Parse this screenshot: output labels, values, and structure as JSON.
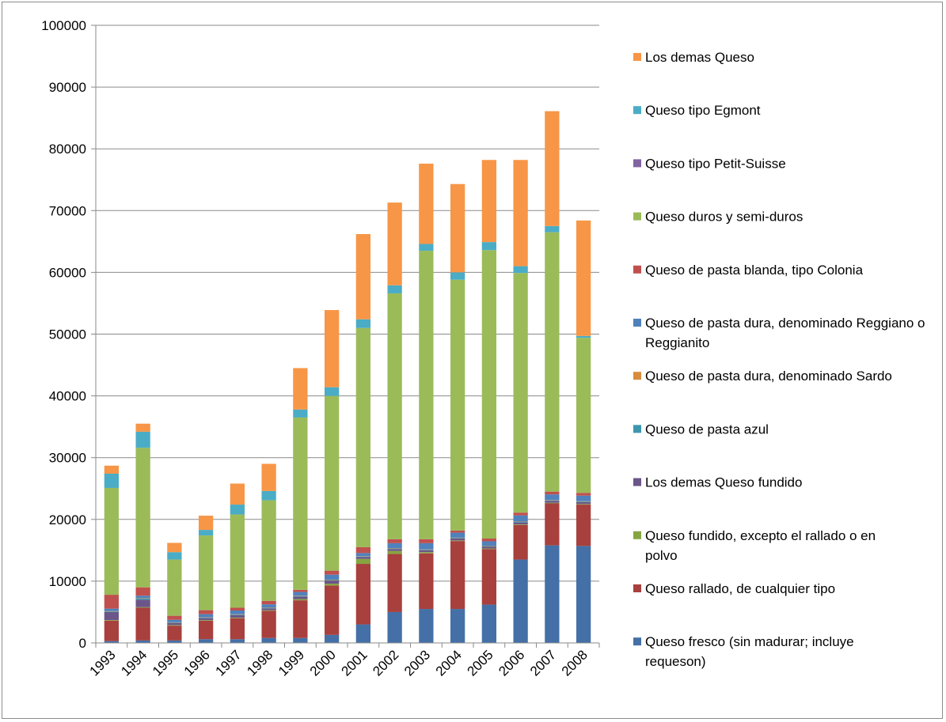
{
  "chart_data": {
    "type": "bar",
    "stacked": true,
    "title": "",
    "xlabel": "",
    "ylabel": "",
    "ylim": [
      0,
      100000
    ],
    "y_ticks": [
      "0",
      "10000",
      "20000",
      "30000",
      "40000",
      "50000",
      "60000",
      "70000",
      "80000",
      "90000",
      "100000"
    ],
    "grid": "horizontal",
    "legend_position": "right",
    "categories": [
      "1993",
      "1994",
      "1995",
      "1996",
      "1997",
      "1998",
      "1999",
      "2000",
      "2001",
      "2002",
      "2003",
      "2004",
      "2005",
      "2006",
      "2007",
      "2008"
    ],
    "series": [
      {
        "name": "Queso fresco (sin madurar; incluye requeson)",
        "color": "#4470a7",
        "values": [
          300,
          400,
          400,
          600,
          600,
          800,
          800,
          1300,
          3000,
          5000,
          5500,
          5500,
          6200,
          13500,
          15800,
          15700
        ]
      },
      {
        "name": "Queso rallado, de cualquier tipo",
        "color": "#a8403e",
        "values": [
          3300,
          5300,
          2400,
          3000,
          3400,
          4400,
          6100,
          8000,
          9800,
          9400,
          9000,
          11000,
          9000,
          5600,
          6800,
          6700
        ]
      },
      {
        "name": "Queso fundido, excepto el rallado o en polvo",
        "color": "#86a542",
        "values": [
          100,
          100,
          100,
          100,
          100,
          100,
          200,
          300,
          800,
          500,
          200,
          100,
          100,
          100,
          100,
          100
        ]
      },
      {
        "name": "Los demas Queso fundido",
        "color": "#6b5589",
        "values": [
          1300,
          1200,
          300,
          300,
          400,
          300,
          400,
          500,
          300,
          300,
          300,
          300,
          300,
          300,
          300,
          300
        ]
      },
      {
        "name": "Queso de pasta azul",
        "color": "#3c96ad",
        "values": [
          100,
          200,
          100,
          100,
          100,
          100,
          100,
          100,
          100,
          100,
          100,
          100,
          100,
          100,
          100,
          100
        ]
      },
      {
        "name": "Queso de pasta dura, denominado Sardo",
        "color": "#d98b3d",
        "values": [
          50,
          50,
          50,
          50,
          50,
          50,
          50,
          50,
          50,
          50,
          50,
          50,
          50,
          50,
          50,
          50
        ]
      },
      {
        "name": "Queso de pasta dura, denominado Reggiano o Reggianito",
        "color": "#4f81bd",
        "values": [
          400,
          400,
          400,
          500,
          600,
          500,
          600,
          800,
          500,
          800,
          1000,
          800,
          700,
          1000,
          900,
          900
        ]
      },
      {
        "name": "Queso de pasta blanda, tipo Colonia",
        "color": "#c0504d",
        "values": [
          2250,
          1350,
          650,
          650,
          450,
          550,
          350,
          650,
          950,
          650,
          650,
          350,
          450,
          450,
          450,
          450
        ]
      },
      {
        "name": "Queso duros y semi-duros",
        "color": "#9bbb59",
        "values": [
          17300,
          22600,
          9100,
          12100,
          15100,
          16300,
          27900,
          28300,
          35500,
          39800,
          46700,
          40600,
          46700,
          38800,
          42000,
          25100
        ]
      },
      {
        "name": "Queso tipo Petit-Suisse",
        "color": "#8064a2",
        "values": [
          0,
          0,
          0,
          0,
          0,
          0,
          0,
          0,
          0,
          0,
          0,
          0,
          0,
          0,
          0,
          0
        ]
      },
      {
        "name": "Queso tipo Egmont",
        "color": "#4bacc6",
        "values": [
          2300,
          2600,
          1200,
          900,
          1600,
          1500,
          1300,
          1400,
          1400,
          1300,
          1100,
          1200,
          1300,
          1100,
          1000,
          300
        ]
      },
      {
        "name": "Los demas Queso",
        "color": "#f79646",
        "values": [
          1300,
          1300,
          1500,
          2300,
          3400,
          4400,
          6700,
          12500,
          13800,
          13400,
          13000,
          14300,
          13300,
          17200,
          18600,
          18700
        ]
      }
    ]
  }
}
